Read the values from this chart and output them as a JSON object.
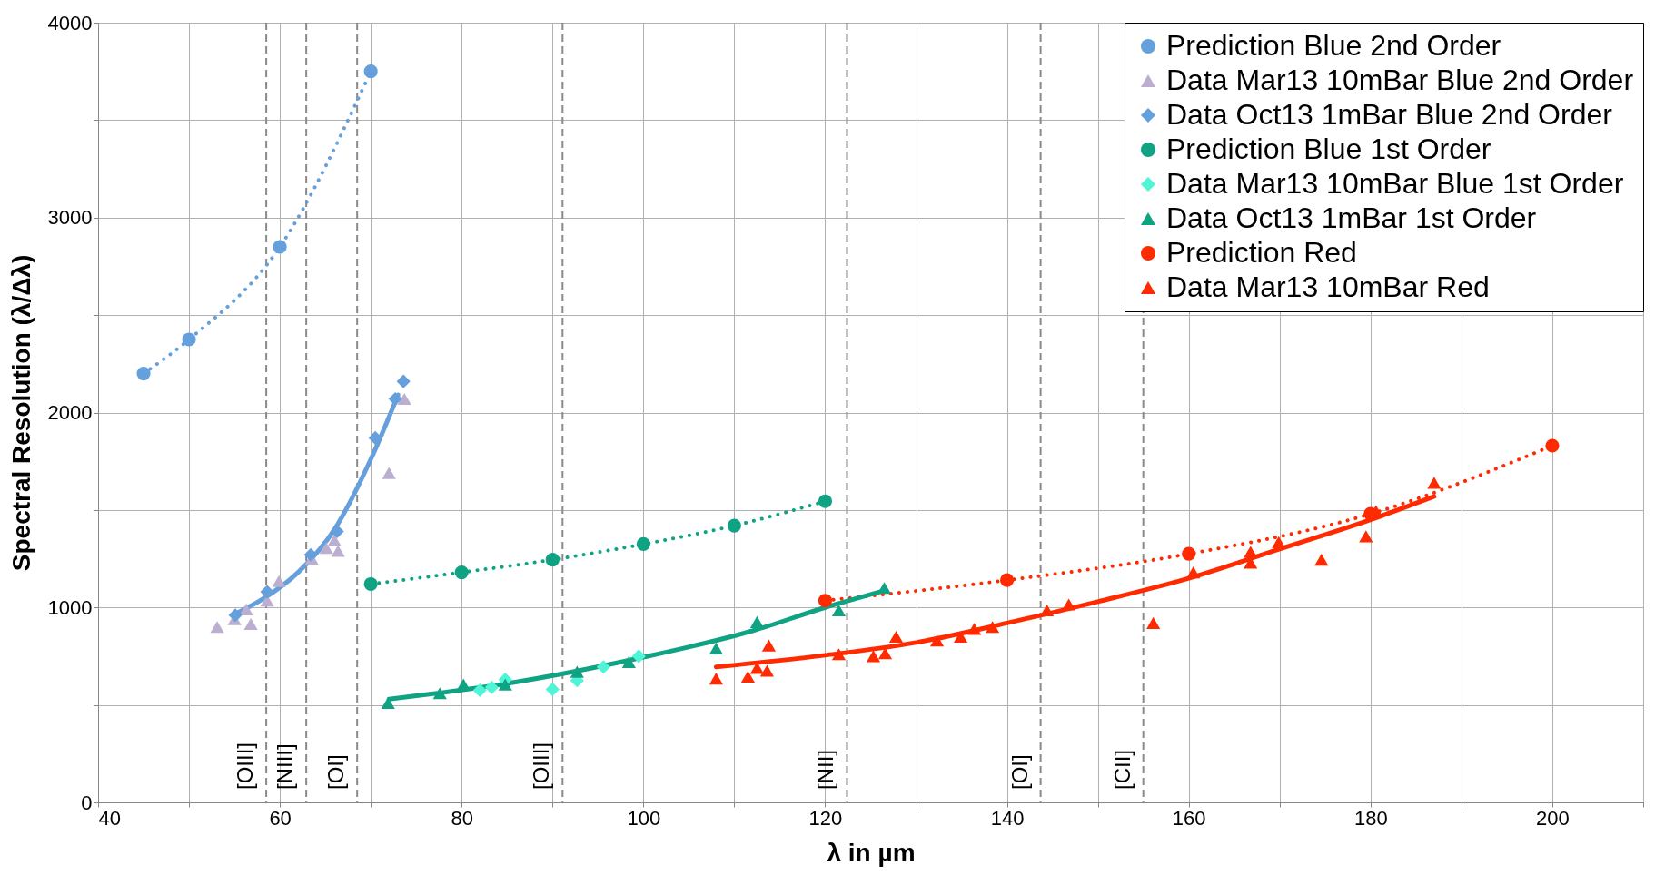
{
  "chart_data": {
    "type": "scatter",
    "xlabel": "λ in µm",
    "ylabel": "Spectral Resolution (λ/Δλ)",
    "xlim": [
      40,
      210
    ],
    "ylim": [
      0,
      4000
    ],
    "xticks": [
      40,
      {
        "value": 50,
        "label": null
      },
      60,
      {
        "value": 70,
        "label": null
      },
      80,
      {
        "value": 90,
        "label": null
      },
      100,
      {
        "value": 110,
        "label": null
      },
      120,
      {
        "value": 130,
        "label": null
      },
      140,
      {
        "value": 150,
        "label": null
      },
      160,
      {
        "value": 170,
        "label": null
      },
      180,
      {
        "value": 190,
        "label": null
      },
      200,
      {
        "value": 210,
        "label": null
      }
    ],
    "yticks": [
      0,
      {
        "value": 500,
        "label": null
      },
      1000,
      {
        "value": 1500,
        "label": null
      },
      2000,
      {
        "value": 2500,
        "label": null
      },
      3000,
      {
        "value": 3500,
        "label": null
      },
      4000
    ],
    "grid": true,
    "legend": "top right",
    "series": [
      {
        "name": "Prediction Blue 2nd Order",
        "type": "line",
        "marker": "circle",
        "line_style": "dotted",
        "color": "#659fdc",
        "x": [
          45,
          50,
          60,
          70
        ],
        "values": [
          2200,
          2375,
          2850,
          3750
        ]
      },
      {
        "name": "Data Mar13 10mBar Blue 2nd Order",
        "marker": "triangle",
        "color": "#bcaed0",
        "x": [
          53.1,
          55.0,
          56.3,
          56.8,
          58.6,
          59.9,
          63.5,
          65.1,
          66.0,
          66.4,
          72.0,
          73.7
        ],
        "values": [
          900,
          940,
          990,
          915,
          1035,
          1135,
          1250,
          1305,
          1345,
          1290,
          1690,
          2070
        ]
      },
      {
        "name": "Data Oct13 1mBar Blue 2nd Order",
        "marker": "diamond",
        "color": "#659fdc",
        "x": [
          55.1,
          58.6,
          63.4,
          66.3,
          70.5,
          72.7,
          73.6
        ],
        "values": [
          960,
          1080,
          1270,
          1390,
          1870,
          2070,
          2160
        ]
      },
      {
        "name": "Prediction Blue 1st Order",
        "type": "line",
        "marker": "circle",
        "line_style": "dotted",
        "color": "#10a383",
        "x": [
          70,
          80,
          90,
          100,
          110,
          120
        ],
        "values": [
          1120,
          1180,
          1245,
          1325,
          1420,
          1545
        ]
      },
      {
        "name": "Data Mar13 10mBar Blue 1st Order",
        "marker": "diamond",
        "color": "#4ff5d6",
        "x": [
          82.0,
          83.3,
          84.8,
          90.0,
          92.7,
          95.6,
          99.5
        ],
        "values": [
          575,
          590,
          630,
          580,
          625,
          695,
          750
        ]
      },
      {
        "name": "Data Oct13 1mBar 1st Order",
        "marker": "triangle",
        "color": "#10a383",
        "x": [
          71.9,
          77.6,
          80.2,
          84.8,
          92.7,
          98.4,
          108.0,
          112.5,
          121.5,
          126.5
        ],
        "values": [
          510,
          560,
          605,
          605,
          670,
          720,
          790,
          925,
          985,
          1100
        ]
      },
      {
        "name": "Prediction Red",
        "type": "line",
        "marker": "circle",
        "line_style": "dotted",
        "color": "#ff2a00",
        "x": [
          120,
          140,
          160,
          180,
          200
        ],
        "values": [
          1035,
          1140,
          1275,
          1480,
          1830
        ]
      },
      {
        "name": "Data Mar13 10mBar Red",
        "marker": "triangle",
        "color": "#ff2a00",
        "x": [
          108.0,
          111.5,
          112.5,
          113.6,
          113.8,
          121.5,
          125.3,
          126.6,
          127.8,
          132.3,
          134.9,
          136.4,
          138.4,
          144.4,
          146.8,
          156.1,
          160.5,
          166.8,
          166.8,
          169.9,
          174.6,
          179.5,
          180.6,
          187.0
        ],
        "values": [
          635,
          645,
          690,
          675,
          805,
          760,
          750,
          765,
          850,
          830,
          850,
          890,
          900,
          985,
          1015,
          920,
          1180,
          1285,
          1230,
          1335,
          1245,
          1365,
          1495,
          1640
        ]
      },
      {
        "type": "line",
        "marker": "none",
        "line_style": "solid",
        "color": "#659fdc",
        "x": [
          55,
          58,
          62,
          66,
          70,
          73
        ],
        "values": [
          965,
          1040,
          1180,
          1400,
          1760,
          2090
        ]
      },
      {
        "type": "line",
        "marker": "none",
        "line_style": "solid",
        "color": "#10a383",
        "x": [
          72,
          85,
          100,
          112,
          120,
          126
        ],
        "values": [
          530,
          610,
          745,
          880,
          1000,
          1080
        ]
      },
      {
        "type": "line",
        "marker": "none",
        "line_style": "solid",
        "color": "#ff2a00",
        "x": [
          108,
          120,
          130,
          140,
          150,
          160,
          170,
          180,
          187
        ],
        "values": [
          695,
          755,
          820,
          920,
          1030,
          1150,
          1300,
          1450,
          1570
        ]
      }
    ],
    "ref_lines": [
      {
        "axis": "x",
        "value": 58.5,
        "color": "#8a8a8a",
        "line_style": "dashed",
        "label": "[OIII]"
      },
      {
        "axis": "x",
        "value": 62.9,
        "color": "#8a8a8a",
        "line_style": "dashed",
        "label": "[NIII]"
      },
      {
        "axis": "x",
        "value": 68.5,
        "color": "#8a8a8a",
        "line_style": "dashed",
        "label": "[OI]"
      },
      {
        "axis": "x",
        "value": 91.1,
        "color": "#8a8a8a",
        "line_style": "dashed",
        "label": "[OIII]"
      },
      {
        "axis": "x",
        "value": 122.4,
        "color": "#8a8a8a",
        "line_style": "dashed",
        "label": "[NII]"
      },
      {
        "axis": "x",
        "value": 143.7,
        "color": "#8a8a8a",
        "line_style": "dashed",
        "label": "[OI]"
      },
      {
        "axis": "x",
        "value": 155.0,
        "color": "#8a8a8a",
        "line_style": "dashed",
        "label": "[CII]"
      }
    ]
  }
}
